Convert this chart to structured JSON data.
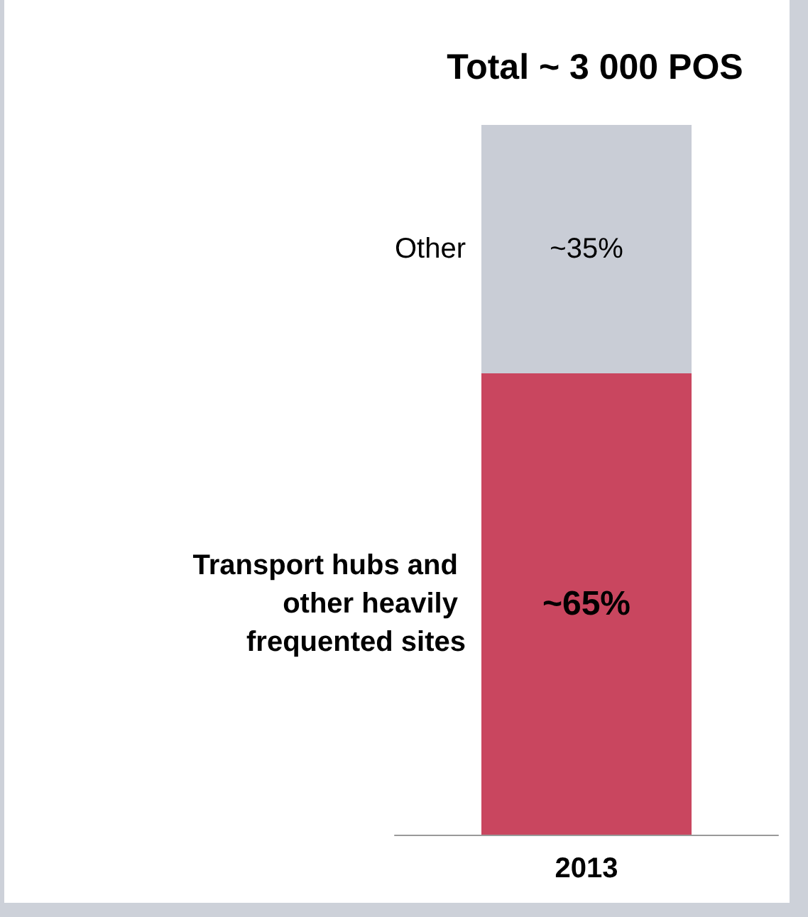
{
  "chart_data": {
    "type": "bar",
    "title": "Total ~ 3 000 POS",
    "categories": [
      "2013"
    ],
    "stacked": true,
    "series": [
      {
        "name": "Transport hubs and other heavily frequented sites",
        "color": "#c9465f",
        "values": [
          65
        ],
        "value_labels": [
          "~65%"
        ]
      },
      {
        "name": "Other",
        "color": "#c9cdd6",
        "values": [
          35
        ],
        "value_labels": [
          "~35%"
        ]
      }
    ]
  }
}
